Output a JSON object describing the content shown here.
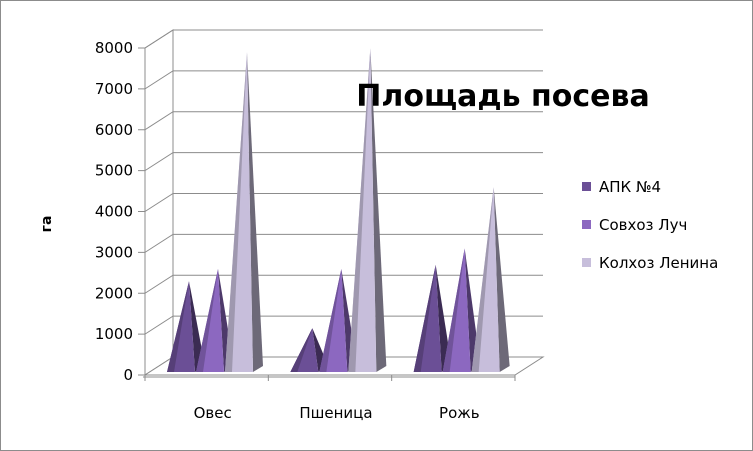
{
  "chart_data": {
    "type": "bar",
    "style": "3d-cone",
    "title": "Площадь посева",
    "xlabel": "",
    "ylabel": "га",
    "ylim": [
      0,
      8000
    ],
    "yticks": [
      "0",
      "1000",
      "2000",
      "3000",
      "4000",
      "5000",
      "6000",
      "7000",
      "8000"
    ],
    "grid": true,
    "legend_position": "right",
    "categories": [
      "Овес",
      "Пшеница",
      "Рожь"
    ],
    "series": [
      {
        "name": "АПК №4",
        "values": [
          2200,
          1050,
          2600
        ],
        "color": "#6b4f96"
      },
      {
        "name": "Совхоз Луч",
        "values": [
          2500,
          2500,
          3000
        ],
        "color": "#8c68c0"
      },
      {
        "name": "Колхоз Ленина",
        "values": [
          7800,
          7900,
          4500
        ],
        "color": "#c7bedb"
      }
    ]
  }
}
